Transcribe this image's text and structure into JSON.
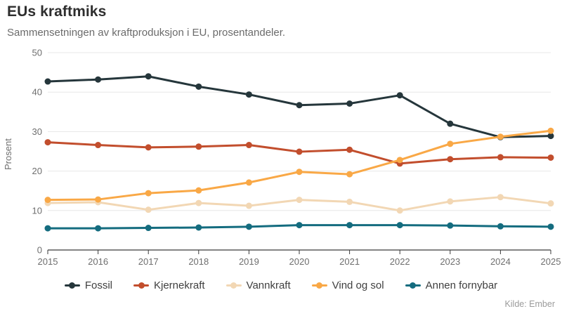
{
  "header": {
    "title": "EUs kraftmiks",
    "subtitle": "Sammensetningen av kraftproduksjon i EU, prosentandeler."
  },
  "footer": {
    "source": "Kilde: Ember"
  },
  "chart_data": {
    "type": "line",
    "title": "EUs kraftmiks",
    "subtitle": "Sammensetningen av kraftproduksjon i EU, prosentandeler.",
    "source": "Kilde: Ember",
    "x": [
      2015,
      2016,
      2017,
      2018,
      2019,
      2020,
      2021,
      2022,
      2023,
      2024,
      2025
    ],
    "xlabel": "",
    "ylabel": "Prosent",
    "ylim": [
      0,
      50
    ],
    "yticks": [
      0,
      10,
      20,
      30,
      40,
      50
    ],
    "grid": "horizontal",
    "legend_position": "bottom",
    "colors": {
      "grid": "#e7e7e7",
      "axis": "#3a3a3a",
      "tick_label": "#6e6e6e"
    },
    "series": [
      {
        "name": "Fossil",
        "color": "#25363b",
        "values": [
          42.7,
          43.2,
          44.0,
          41.4,
          39.4,
          36.7,
          37.1,
          39.2,
          32.0,
          28.6,
          28.9
        ]
      },
      {
        "name": "Kjernekraft",
        "color": "#c24e2d",
        "values": [
          27.3,
          26.6,
          26.0,
          26.2,
          26.6,
          24.9,
          25.4,
          21.9,
          23.0,
          23.5,
          23.4
        ]
      },
      {
        "name": "Vannkraft",
        "color": "#f2d7b4",
        "values": [
          11.9,
          12.1,
          10.2,
          11.9,
          11.2,
          12.7,
          12.2,
          10.0,
          12.3,
          13.4,
          11.8
        ]
      },
      {
        "name": "Vind og sol",
        "color": "#f9a846",
        "values": [
          12.7,
          12.8,
          14.4,
          15.1,
          17.1,
          19.8,
          19.2,
          22.8,
          26.9,
          28.7,
          30.2
        ]
      },
      {
        "name": "Annen fornybar",
        "color": "#146c7f",
        "values": [
          5.5,
          5.5,
          5.6,
          5.7,
          5.9,
          6.3,
          6.3,
          6.3,
          6.2,
          6.0,
          5.9
        ]
      }
    ]
  }
}
